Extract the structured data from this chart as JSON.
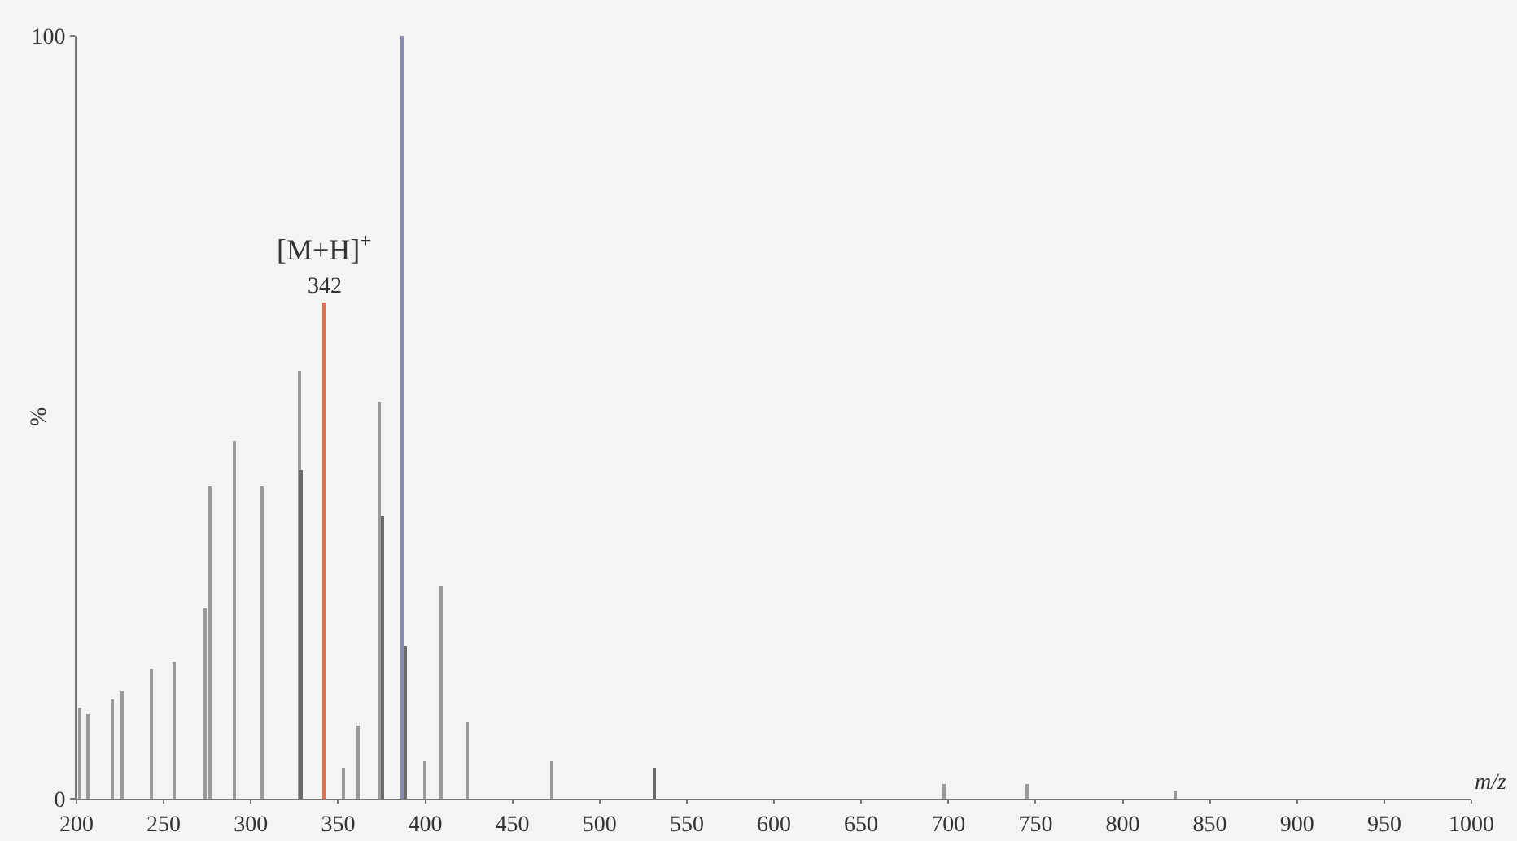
{
  "chart_data": {
    "type": "bar",
    "xlabel": "m/z",
    "ylabel": "%",
    "x": [
      202,
      207,
      221,
      226,
      243,
      256,
      274,
      277,
      291,
      307,
      328,
      329,
      342,
      353,
      362,
      374,
      376,
      387,
      389,
      400,
      409,
      424,
      473,
      532,
      698,
      745,
      830
    ],
    "values": [
      12,
      11,
      13,
      14,
      17,
      18,
      25,
      41,
      47,
      41,
      56,
      43,
      65,
      4,
      9.5,
      52,
      37,
      100,
      20,
      5,
      28,
      10,
      5,
      4,
      2,
      2,
      1
    ],
    "colors": [
      "#9a9a9a",
      "#9a9a9a",
      "#9a9a9a",
      "#9a9a9a",
      "#9a9a9a",
      "#9a9a9a",
      "#9a9a9a",
      "#9a9a9a",
      "#9a9a9a",
      "#9a9a9a",
      "#9a9a9a",
      "#6a6a6a",
      "#e07050",
      "#9a9a9a",
      "#9a9a9a",
      "#9a9a9a",
      "#6a6a6a",
      "#8a8ab0",
      "#6a6a6a",
      "#9a9a9a",
      "#9a9a9a",
      "#9a9a9a",
      "#9a9a9a",
      "#6a6a6a",
      "#9a9a9a",
      "#9a9a9a",
      "#9a9a9a"
    ],
    "xlim": [
      200,
      1000
    ],
    "xticks": [
      200,
      250,
      300,
      350,
      400,
      450,
      500,
      550,
      600,
      650,
      700,
      750,
      800,
      850,
      900,
      950,
      1000
    ],
    "ylim": [
      0,
      100
    ],
    "yticks": [
      0,
      100
    ],
    "annotations": [
      {
        "text": "[M+H]$^{+}$",
        "x": 342,
        "y": 65
      },
      {
        "text": "342",
        "x": 342,
        "y": 65
      }
    ]
  }
}
